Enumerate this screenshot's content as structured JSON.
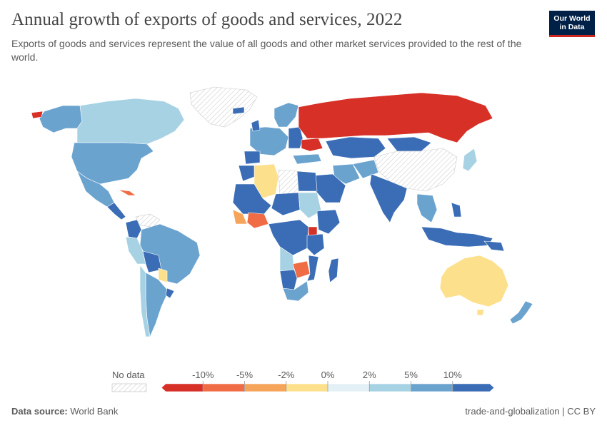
{
  "title": "Annual growth of exports of goods and services, 2022",
  "subtitle": "Exports of goods and services represent the value of all goods and other market services provided to the rest of the world.",
  "logo": {
    "line1": "Our World",
    "line2": "in Data"
  },
  "legend": {
    "no_data_label": "No data",
    "bins": [
      {
        "color": "#d73027"
      },
      {
        "color": "#ef6c45"
      },
      {
        "color": "#f6a45a"
      },
      {
        "color": "#fde08c"
      },
      {
        "color": "#e3f0f6"
      },
      {
        "color": "#a7d2e4"
      },
      {
        "color": "#6ba3cf"
      },
      {
        "color": "#3a6db5"
      }
    ],
    "ticks": [
      "-10%",
      "-5%",
      "-2%",
      "0%",
      "2%",
      "5%",
      "10%"
    ]
  },
  "footer": {
    "source_label": "Data source:",
    "source_value": "World Bank",
    "right": "trade-and-globalization | CC BY"
  },
  "regions": [
    {
      "name": "Russia",
      "bin": 0
    },
    {
      "name": "Australia",
      "bin": 3
    },
    {
      "name": "Canada",
      "bin": 5
    },
    {
      "name": "United States",
      "bin": 6
    },
    {
      "name": "Brazil",
      "bin": 6
    },
    {
      "name": "China",
      "bin": -1
    },
    {
      "name": "India",
      "bin": 7
    },
    {
      "name": "Greenland",
      "bin": -1
    }
  ]
}
